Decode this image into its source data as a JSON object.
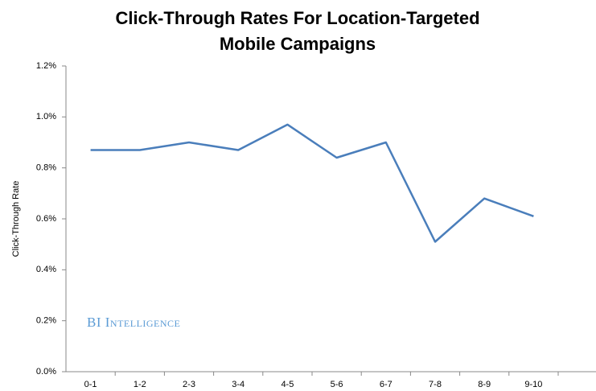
{
  "chart_data": {
    "type": "line",
    "title": [
      "Click-Through Rates For Location-Targeted",
      "Mobile Campaigns"
    ],
    "y_label": "Click-Through Rate",
    "watermark": "BI Intelligence",
    "categories": [
      "0-1",
      "1-2",
      "2-3",
      "3-4",
      "4-5",
      "5-6",
      "6-7",
      "7-8",
      "8-9",
      "9-10"
    ],
    "values": [
      0.87,
      0.87,
      0.9,
      0.87,
      0.97,
      0.84,
      0.9,
      0.51,
      0.68,
      0.61
    ],
    "color": "#4a7ebb",
    "ylim": [
      0,
      1.2
    ],
    "yticks": [
      {
        "value": 0,
        "label": "0.0%"
      },
      {
        "value": 0.2,
        "label": "0.2%"
      },
      {
        "value": 0.4,
        "label": "0.4%"
      },
      {
        "value": 0.6,
        "label": "0.6%"
      },
      {
        "value": 0.8,
        "label": "0.8%"
      },
      {
        "value": 1.0,
        "label": "1.0%"
      },
      {
        "value": 1.2,
        "label": "1.2%"
      }
    ],
    "grid": false
  }
}
